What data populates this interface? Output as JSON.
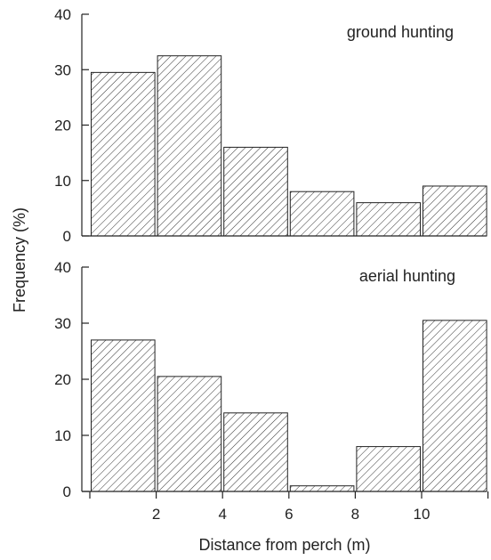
{
  "chart_data": [
    {
      "type": "bar",
      "title": "ground hunting",
      "xlabel": "Distance from perch (m)",
      "ylabel": "Frequency (%)",
      "ylim": [
        0,
        40
      ],
      "yticks": [
        "0",
        "10",
        "20",
        "30",
        "40"
      ],
      "bins": [
        [
          0,
          2
        ],
        [
          2,
          4
        ],
        [
          4,
          6
        ],
        [
          6,
          8
        ],
        [
          8,
          10
        ],
        [
          10,
          12
        ]
      ],
      "values": [
        29.5,
        32.5,
        16,
        8,
        6,
        9
      ],
      "fill": "diagonal-hatch",
      "grid": false
    },
    {
      "type": "bar",
      "title": "aerial hunting",
      "xlabel": "Distance from perch (m)",
      "ylabel": "Frequency (%)",
      "ylim": [
        0,
        40
      ],
      "yticks": [
        "0",
        "10",
        "20",
        "30",
        "40"
      ],
      "xticks": [
        "2",
        "4",
        "6",
        "8",
        "10"
      ],
      "bins": [
        [
          0,
          2
        ],
        [
          2,
          4
        ],
        [
          4,
          6
        ],
        [
          6,
          8
        ],
        [
          8,
          10
        ],
        [
          10,
          12
        ]
      ],
      "values": [
        27,
        20.5,
        14,
        1,
        8,
        30.5
      ],
      "fill": "diagonal-hatch",
      "grid": false
    }
  ],
  "shared": {
    "xlabel": "Distance from perch (m)",
    "ylabel": "Frequency (%)"
  },
  "colors": {
    "ink": "#222222",
    "hatch": "#333333",
    "background": "#ffffff"
  }
}
